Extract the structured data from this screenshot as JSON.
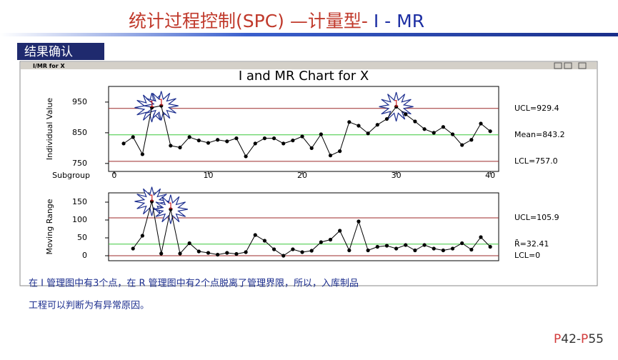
{
  "header": {
    "title_red": "统计过程控制(SPC) —计量型-",
    "title_blue": " I - MR"
  },
  "section": "结果确认",
  "window_title": "I/MR for X",
  "chart_title": "I and MR Chart for X",
  "chart_data": [
    {
      "type": "line",
      "ylabel": "Individual Value",
      "xlabel": "Subgroup",
      "x": [
        1,
        2,
        3,
        4,
        5,
        6,
        7,
        8,
        9,
        10,
        11,
        12,
        13,
        14,
        15,
        16,
        17,
        18,
        19,
        20,
        21,
        22,
        23,
        24,
        25,
        26,
        27,
        28,
        29,
        30,
        31,
        32,
        33,
        34,
        35,
        36,
        37,
        38,
        39,
        40
      ],
      "series": [
        {
          "color": "#000000",
          "values": [
            815,
            836,
            780,
            932,
            938,
            808,
            802,
            836,
            825,
            817,
            827,
            822,
            832,
            773,
            815,
            832,
            832,
            815,
            825,
            838,
            800,
            845,
            776,
            790,
            885,
            873,
            848,
            876,
            895,
            935,
            910,
            887,
            862,
            850,
            869,
            845,
            810,
            827,
            880,
            855
          ]
        }
      ],
      "xlim": [
        -0.6,
        40.9
      ],
      "xticks": [
        0,
        10,
        20,
        30,
        40
      ],
      "ylim": [
        724,
        1001
      ],
      "yticks": [
        750,
        850,
        950
      ],
      "reference_lines": [
        {
          "value": 929.4,
          "label": "UCL=929.4",
          "color": "#9c2a2a"
        },
        {
          "value": 843.2,
          "label": "Mean=843.2",
          "color": "#3cc83c"
        },
        {
          "value": 757.0,
          "label": "LCL=757.0",
          "color": "#9c2a2a"
        }
      ],
      "flags": [
        {
          "x": 4,
          "label": "1"
        },
        {
          "x": 5,
          "label": "1"
        },
        {
          "x": 30,
          "label": "1"
        }
      ]
    },
    {
      "type": "line",
      "ylabel": "Moving Range",
      "x": [
        2,
        3,
        4,
        5,
        6,
        7,
        8,
        9,
        10,
        11,
        12,
        13,
        14,
        15,
        16,
        17,
        18,
        19,
        20,
        21,
        22,
        23,
        24,
        25,
        26,
        27,
        28,
        29,
        30,
        31,
        32,
        33,
        34,
        35,
        36,
        37,
        38,
        39,
        40
      ],
      "series": [
        {
          "color": "#000000",
          "values": [
            20,
            56,
            152,
            6,
            130,
            6,
            35,
            12,
            8,
            3,
            8,
            5,
            10,
            58,
            42,
            18,
            0,
            18,
            10,
            14,
            38,
            45,
            70,
            15,
            96,
            15,
            25,
            28,
            20,
            30,
            15,
            30,
            20,
            15,
            20,
            35,
            17,
            52,
            25
          ]
        }
      ],
      "xlim": [
        -0.6,
        40.9
      ],
      "ylim": [
        -14,
        176
      ],
      "yticks": [
        0,
        50,
        100,
        150
      ],
      "reference_lines": [
        {
          "value": 105.9,
          "label": "UCL=105.9",
          "color": "#9c2a2a"
        },
        {
          "value": 32.41,
          "label": "R̄=32.41",
          "color": "#3cc83c"
        },
        {
          "value": 0,
          "label": "LCL=0",
          "color": "#9c2a2a"
        }
      ],
      "flags": [
        {
          "x": 4,
          "label": "1"
        },
        {
          "x": 6,
          "label": "1"
        }
      ]
    }
  ],
  "body": [
    "在 I 管理图中有3个点，在 R 管理图中有2个点脱离了管理界限，所以，入库制品",
    "工程可以判断为有异常原因。"
  ],
  "page": {
    "p1": "P",
    "n1": "42-",
    "p2": "P",
    "n2": "55"
  }
}
